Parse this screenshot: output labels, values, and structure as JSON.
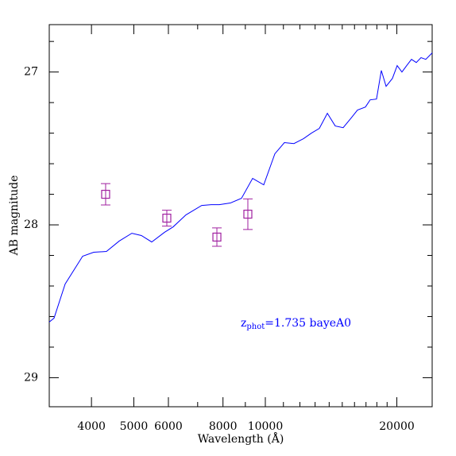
{
  "chart_data": {
    "type": "line",
    "xlabel": "Wavelength (Å)",
    "ylabel": "AB magnitude",
    "xscale": "log",
    "xlim": [
      3202,
      24093
    ],
    "ylim": [
      29.19,
      26.69
    ],
    "xticks": [
      4000,
      5000,
      6000,
      8000,
      10000,
      20000
    ],
    "xminorticks": [
      7000,
      9000,
      11000,
      12000,
      13000,
      14000,
      15000,
      16000,
      17000,
      18000,
      19000
    ],
    "yticks": [
      27,
      28,
      29
    ],
    "yminorticks": [
      26.8,
      27.2,
      27.4,
      27.6,
      27.8,
      28.2,
      28.4,
      28.6,
      28.8,
      29.2
    ],
    "color": "#0000ff",
    "x": [
      3202,
      3284,
      3482,
      3818,
      4048,
      4329,
      4629,
      4949,
      5204,
      5495,
      5877,
      6153,
      6579,
      7152,
      7521,
      7846,
      8318,
      8820,
      9352,
      9917,
      10515,
      11057,
      11628,
      12228,
      12750,
      13292,
      13868,
      14454,
      15072,
      15719,
      16253,
      16950,
      17378,
      17968,
      18430,
      18899,
      19539,
      20035,
      20544,
      21065,
      21603,
      22159,
      22718,
      23296,
      24093
    ],
    "values": [
      28.636,
      28.61,
      28.387,
      28.205,
      28.179,
      28.174,
      28.106,
      28.055,
      28.07,
      28.112,
      28.049,
      28.013,
      27.935,
      27.873,
      27.868,
      27.868,
      27.857,
      27.826,
      27.696,
      27.738,
      27.535,
      27.462,
      27.468,
      27.436,
      27.4,
      27.369,
      27.27,
      27.353,
      27.364,
      27.301,
      27.249,
      27.229,
      27.182,
      27.177,
      26.99,
      27.094,
      27.042,
      26.958,
      27.0,
      26.958,
      26.917,
      26.938,
      26.906,
      26.917,
      26.875
    ],
    "points": {
      "color": "#a020a0",
      "x": [
        4310,
        5950,
        7747,
        9120
      ],
      "values": [
        27.8,
        27.956,
        28.08,
        27.93
      ],
      "errors": [
        0.07,
        0.052,
        0.06,
        0.1
      ]
    },
    "annotation": {
      "text": "z",
      "subscript": "phot",
      "rest": "=1.735 bayeA0",
      "color": "#0000ff"
    }
  }
}
